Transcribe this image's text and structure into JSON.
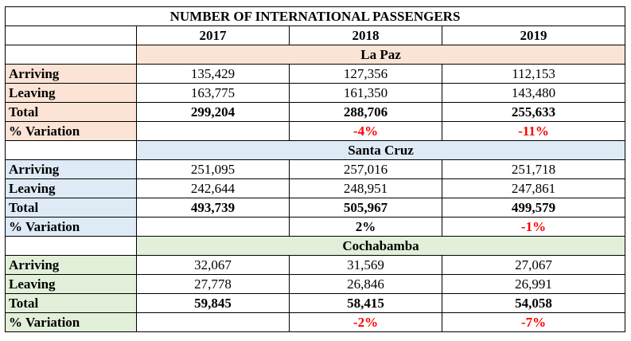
{
  "title": "NUMBER OF INTERNATIONAL PASSENGERS",
  "years": [
    "2017",
    "2018",
    "2019"
  ],
  "row_labels": {
    "arriving": "Arriving",
    "leaving": "Leaving",
    "total": "Total",
    "variation": "% Variation"
  },
  "colors": {
    "la_paz": "#fbe4d5",
    "santa_cruz": "#deebf7",
    "cochabamba": "#e2efd9",
    "negative": "#ff0000"
  },
  "cities": [
    {
      "name": "La Paz",
      "arriving": [
        "135,429",
        "127,356",
        "112,153"
      ],
      "leaving": [
        "163,775",
        "161,350",
        "143,480"
      ],
      "total": [
        "299,204",
        "288,706",
        "255,633"
      ],
      "variation": [
        "",
        "-4%",
        "-11%"
      ]
    },
    {
      "name": "Santa Cruz",
      "arriving": [
        "251,095",
        "257,016",
        "251,718"
      ],
      "leaving": [
        "242,644",
        "248,951",
        "247,861"
      ],
      "total": [
        "493,739",
        "505,967",
        "499,579"
      ],
      "variation": [
        "",
        "2%",
        "-1%"
      ]
    },
    {
      "name": "Cochabamba",
      "arriving": [
        "32,067",
        "31,569",
        "27,067"
      ],
      "leaving": [
        "27,778",
        "26,846",
        "26,991"
      ],
      "total": [
        "59,845",
        "58,415",
        "54,058"
      ],
      "variation": [
        "",
        "-2%",
        "-7%"
      ]
    }
  ]
}
